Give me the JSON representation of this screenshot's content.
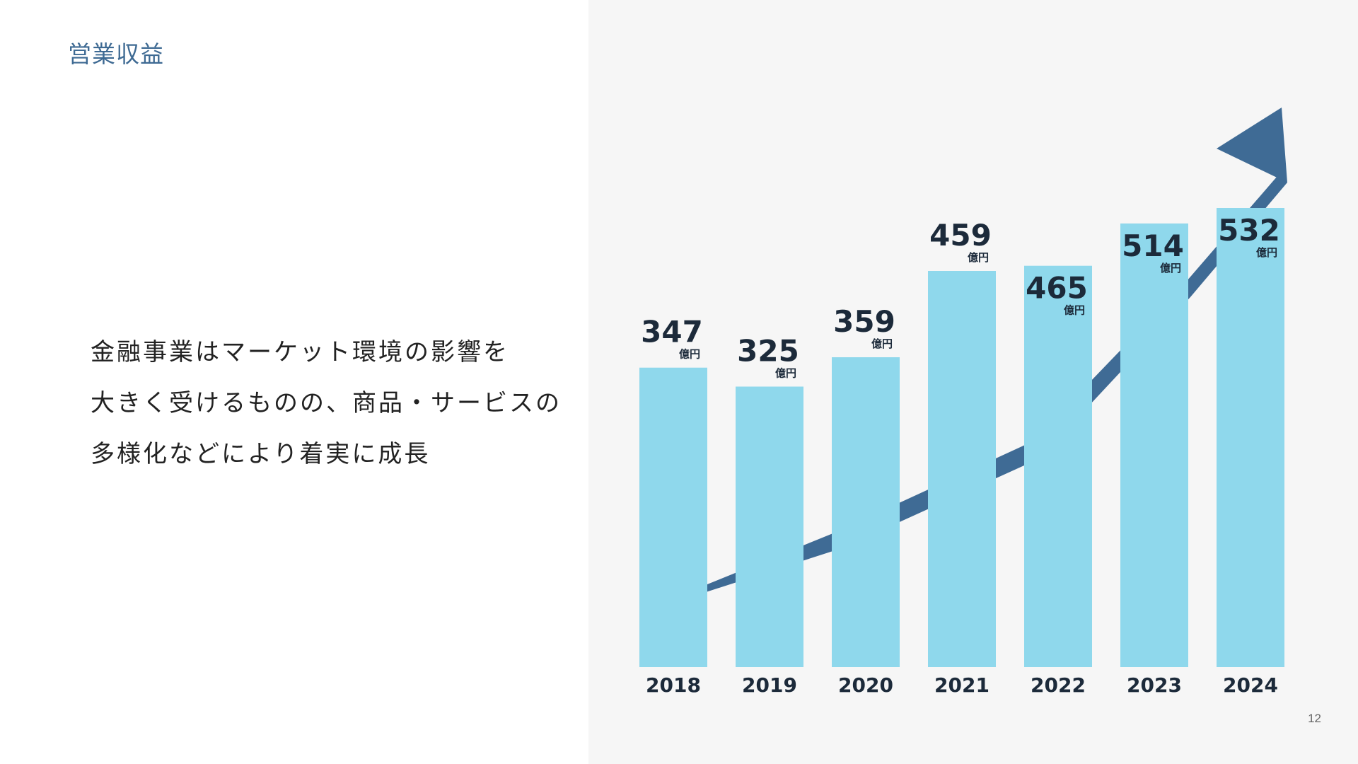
{
  "slide": {
    "title": "営業収益",
    "body_lines": [
      "金融事業はマーケット環境の影響を",
      "大きく受けるものの、商品・サービスの",
      "多様化などにより着実に成長"
    ],
    "page_number": "12"
  },
  "chart_data": {
    "type": "bar",
    "categories": [
      "2018",
      "2019",
      "2020",
      "2021",
      "2022",
      "2023",
      "2024"
    ],
    "values": [
      347,
      325,
      359,
      459,
      465,
      514,
      532
    ],
    "value_unit": "億円",
    "title": "",
    "xlabel": "",
    "ylabel": "",
    "ylim": [
      0,
      600
    ],
    "grid": false,
    "legend": "none",
    "label_positions": [
      "above",
      "above",
      "above",
      "above",
      "inside",
      "inside",
      "inside"
    ],
    "colors": {
      "bar": "#8fd8ec",
      "arrow": "#3f6b95",
      "label": "#1c2a3a",
      "panel_bg": "#f6f6f6"
    },
    "trend_arrow": true
  }
}
